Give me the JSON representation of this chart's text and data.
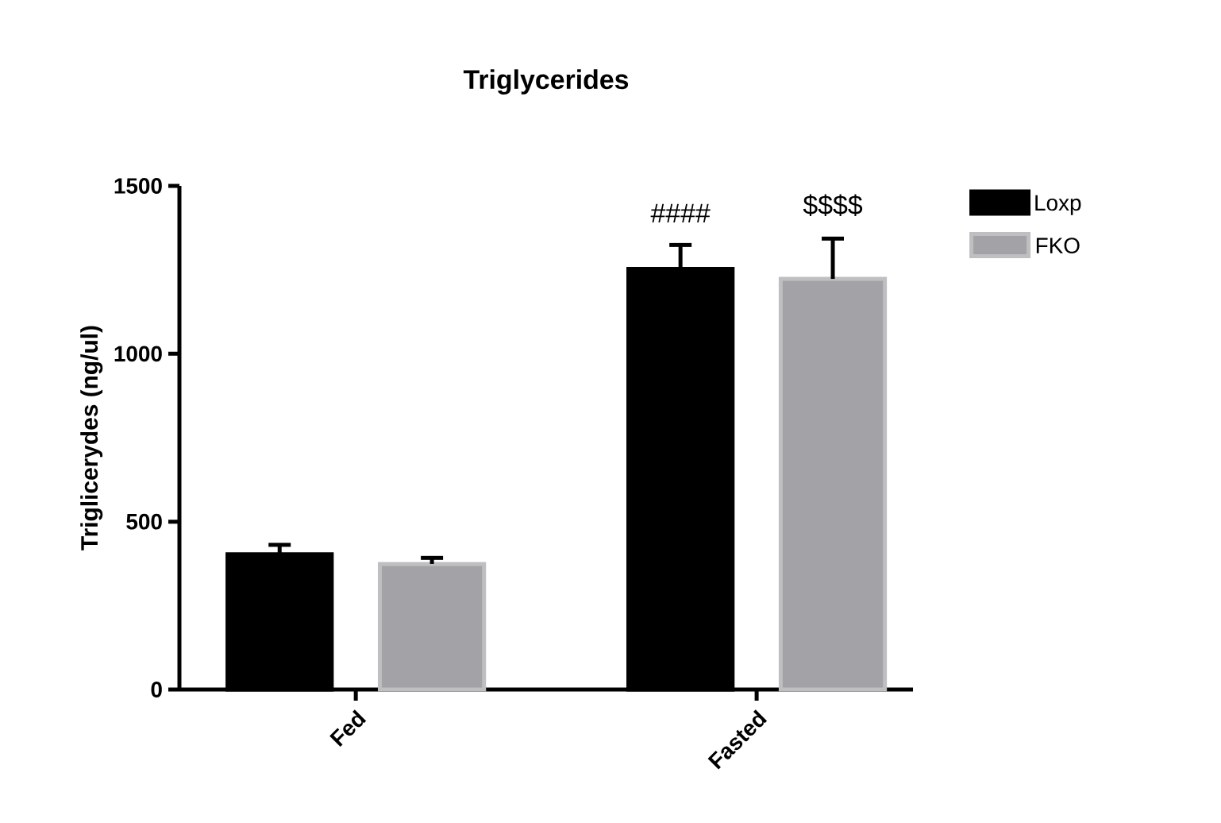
{
  "chart_data": {
    "type": "bar",
    "title": "Triglycerides",
    "ylabel": "Triglicerydes (ng/ul)",
    "categories": [
      "Fed",
      "Fasted"
    ],
    "series": [
      {
        "name": "Loxp",
        "color": "#000000",
        "values": [
          403,
          1253
        ],
        "errors": [
          28,
          71
        ]
      },
      {
        "name": "FKO",
        "color": "#a3a2a7",
        "values": [
          374,
          1223
        ],
        "errors": [
          18,
          120
        ]
      }
    ],
    "ylim": [
      0,
      1500
    ],
    "yticks": [
      0,
      500,
      1000,
      1500
    ],
    "legend": "top right",
    "grid": false,
    "annotations": [
      "####",
      "$$$$"
    ]
  }
}
